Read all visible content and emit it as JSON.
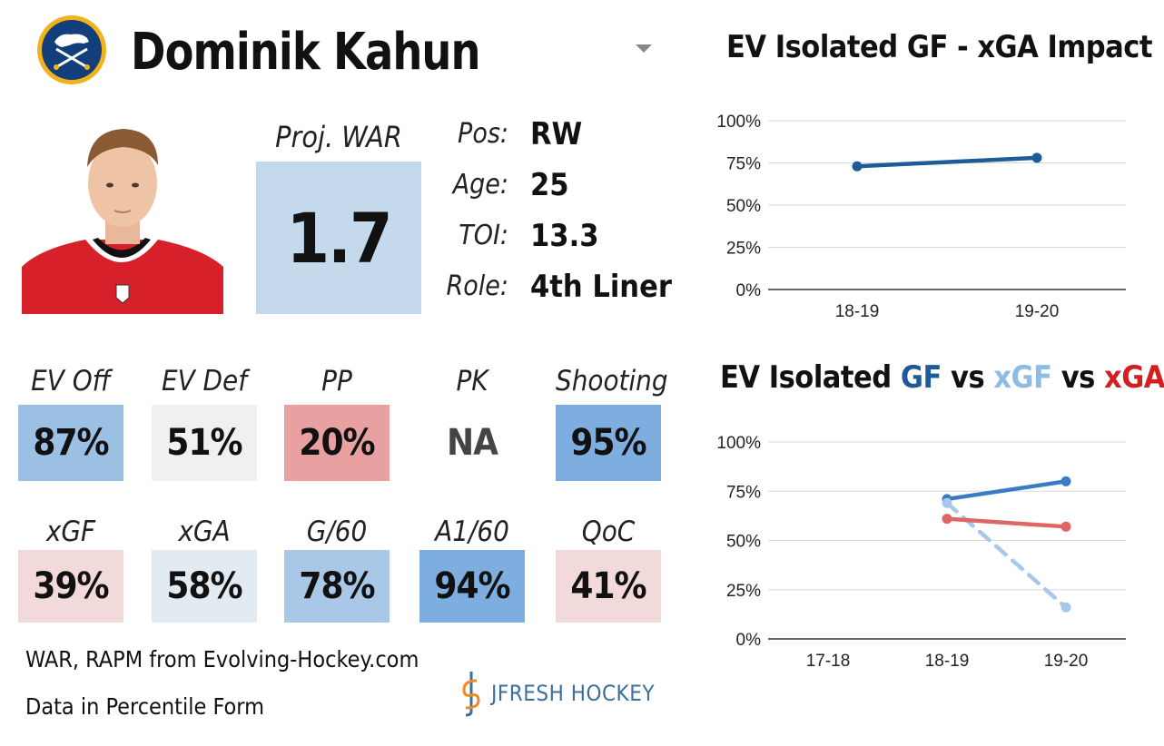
{
  "header": {
    "player_name": "Dominik Kahun",
    "team_logo_icon": "buffalo-sabres-logo",
    "dropdown_icon": "caret-down-icon"
  },
  "war": {
    "label": "Proj. WAR",
    "value": "1.7",
    "color": "#c5d9ed"
  },
  "info": [
    {
      "label": "Pos:",
      "value": "RW"
    },
    {
      "label": "Age:",
      "value": "25"
    },
    {
      "label": "TOI:",
      "value": "13.3"
    },
    {
      "label": "Role:",
      "value": "4th Liner"
    }
  ],
  "stats_row1": [
    {
      "label": "EV Off",
      "value": "87%",
      "color": "#9cc0e4"
    },
    {
      "label": "EV Def",
      "value": "51%",
      "color": "#eef0f2"
    },
    {
      "label": "PP",
      "value": "20%",
      "color": "#e8a0a0"
    },
    {
      "label": "PK",
      "value": "NA",
      "color": "#ffffff"
    },
    {
      "label": "Shooting",
      "value": "95%",
      "color": "#7eaedf"
    }
  ],
  "stats_row2": [
    {
      "label": "xGF",
      "value": "39%",
      "color": "#f2dada"
    },
    {
      "label": "xGA",
      "value": "58%",
      "color": "#e2eaf2"
    },
    {
      "label": "G/60",
      "value": "78%",
      "color": "#a9c8e8"
    },
    {
      "label": "A1/60",
      "value": "94%",
      "color": "#7eaedf"
    },
    {
      "label": "QoC",
      "value": "41%",
      "color": "#f2dada"
    }
  ],
  "footer": {
    "source": "WAR, RAPM from  Evolving-Hockey.com",
    "note": "Data in Percentile Form",
    "brand": "JFRESH HOCKEY"
  },
  "chart_data": [
    {
      "type": "line",
      "title": "EV Isolated GF - xGA Impact",
      "categories": [
        "18-19",
        "19-20"
      ],
      "ylim": [
        0,
        100
      ],
      "yticks": [
        "0%",
        "25%",
        "50%",
        "75%",
        "100%"
      ],
      "series": [
        {
          "values": [
            73,
            78
          ],
          "color": "#1f5b99",
          "dashed": false
        }
      ]
    },
    {
      "type": "line",
      "title_parts": [
        {
          "text": "EV Isolated ",
          "color": "#111111"
        },
        {
          "text": "GF",
          "color": "#1f5b99"
        },
        {
          "text": " vs ",
          "color": "#111111"
        },
        {
          "text": "xGF",
          "color": "#8fbce6"
        },
        {
          "text": " vs ",
          "color": "#111111"
        },
        {
          "text": "xGA",
          "color": "#d21f1f"
        }
      ],
      "categories": [
        "17-18",
        "18-19",
        "19-20"
      ],
      "ylim": [
        0,
        100
      ],
      "yticks": [
        "0%",
        "25%",
        "50%",
        "75%",
        "100%"
      ],
      "series": [
        {
          "name": "GF",
          "values": [
            null,
            71,
            80
          ],
          "color": "#3a7cc4",
          "dashed": false
        },
        {
          "name": "xGF",
          "values": [
            null,
            69,
            16
          ],
          "color": "#a7c8ea",
          "dashed": true
        },
        {
          "name": "xGA",
          "values": [
            null,
            61,
            57
          ],
          "color": "#e06565",
          "dashed": false
        }
      ]
    }
  ]
}
